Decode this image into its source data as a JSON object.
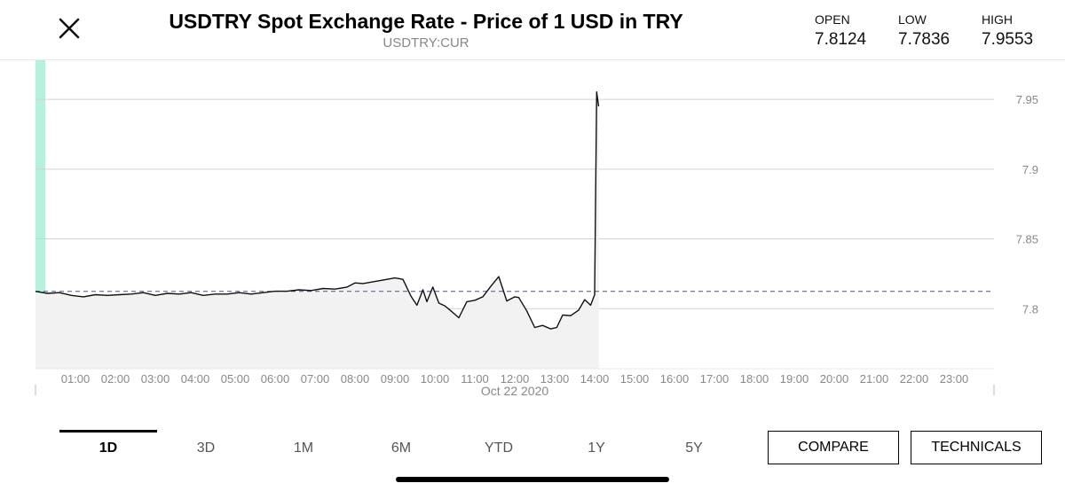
{
  "header": {
    "title": "USDTRY Spot Exchange Rate - Price of 1 USD in TRY",
    "ticker": "USDTRY:CUR",
    "stats": [
      {
        "label": "OPEN",
        "value": "7.8124"
      },
      {
        "label": "LOW",
        "value": "7.7836"
      },
      {
        "label": "HIGH",
        "value": "7.9553"
      }
    ]
  },
  "icons": {
    "close": "close-icon"
  },
  "colors": {
    "accent": "#b8f0df",
    "line": "#111111",
    "area_fill": "#f2f2f2",
    "grid": "#d0d0d0",
    "reference_line": "#4a5a70"
  },
  "chart_data": {
    "type": "line",
    "date_label": "Oct 22 2020",
    "x_unit": "hours",
    "xlim": [
      0,
      24
    ],
    "ylim": [
      7.757,
      7.978
    ],
    "y_ticks": [
      7.8,
      7.85,
      7.9,
      7.95
    ],
    "y_tick_labels": [
      "7.8",
      "7.85",
      "7.9",
      "7.95"
    ],
    "x_ticks": [
      1,
      2,
      3,
      4,
      5,
      6,
      7,
      8,
      9,
      10,
      11,
      12,
      13,
      14,
      15,
      16,
      17,
      18,
      19,
      20,
      21,
      22,
      23
    ],
    "x_tick_labels": [
      "01:00",
      "02:00",
      "03:00",
      "04:00",
      "05:00",
      "06:00",
      "07:00",
      "08:00",
      "09:00",
      "10:00",
      "11:00",
      "12:00",
      "13:00",
      "14:00",
      "15:00",
      "16:00",
      "17:00",
      "18:00",
      "19:00",
      "20:00",
      "21:00",
      "22:00",
      "23:00"
    ],
    "reference_value": 7.8124,
    "reference_style": "dashed",
    "grid": "horizontal",
    "area": true,
    "series": [
      {
        "x": [
          0,
          0.3,
          0.6,
          0.9,
          1.2,
          1.5,
          1.8,
          2.1,
          2.4,
          2.7,
          3.0,
          3.3,
          3.6,
          3.9,
          4.2,
          4.5,
          4.8,
          5.1,
          5.4,
          5.7,
          6.0,
          6.3,
          6.6,
          6.9,
          7.2,
          7.5,
          7.8,
          8.0,
          8.2,
          8.5,
          8.8,
          9.0,
          9.2,
          9.4,
          9.55,
          9.7,
          9.8,
          9.95,
          10.1,
          10.25,
          10.4,
          10.6,
          10.8,
          11.0,
          11.2,
          11.4,
          11.6,
          11.8,
          12.0,
          12.1,
          12.3,
          12.5,
          12.7,
          12.9,
          13.05,
          13.2,
          13.4,
          13.6,
          13.75,
          13.9,
          14.0,
          14.05,
          14.1
        ],
        "y": [
          7.8124,
          7.811,
          7.8115,
          7.8095,
          7.8085,
          7.81,
          7.8095,
          7.81,
          7.8105,
          7.8115,
          7.8095,
          7.811,
          7.8105,
          7.8115,
          7.8095,
          7.8105,
          7.8105,
          7.8115,
          7.8105,
          7.8115,
          7.8125,
          7.8125,
          7.8135,
          7.813,
          7.8145,
          7.814,
          7.8155,
          7.8185,
          7.818,
          7.8195,
          7.821,
          7.822,
          7.821,
          7.809,
          7.8025,
          7.8135,
          7.805,
          7.8155,
          7.804,
          7.802,
          7.7985,
          7.7935,
          7.805,
          7.806,
          7.8085,
          7.816,
          7.823,
          7.8055,
          7.8085,
          7.808,
          7.7985,
          7.7865,
          7.788,
          7.7855,
          7.7865,
          7.7955,
          7.795,
          7.799,
          7.8065,
          7.8025,
          7.81,
          7.9553,
          7.945
        ]
      }
    ]
  },
  "tabs": [
    {
      "label": "1D",
      "active": true
    },
    {
      "label": "3D"
    },
    {
      "label": "1M"
    },
    {
      "label": "6M"
    },
    {
      "label": "YTD"
    },
    {
      "label": "1Y"
    },
    {
      "label": "5Y"
    }
  ],
  "buttons": {
    "compare": "COMPARE",
    "technicals": "TECHNICALS"
  }
}
